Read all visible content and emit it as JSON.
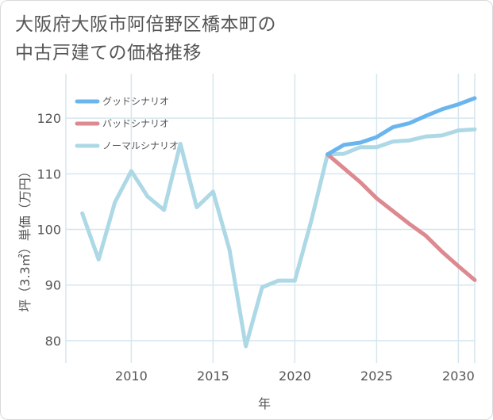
{
  "title": {
    "line1": "大阪府大阪市阿倍野区橋本町の",
    "line2": "中古戸建ての価格推移"
  },
  "chart_data": {
    "type": "line",
    "title": "大阪府大阪市阿倍野区橋本町の中古戸建ての価格推移",
    "xlabel": "年",
    "ylabel": "坪（3.3㎡）単価（万円）",
    "xlim": [
      2006,
      2031
    ],
    "ylim": [
      76,
      128
    ],
    "x_ticks": [
      2010,
      2015,
      2020,
      2025,
      2030
    ],
    "y_ticks": [
      80,
      90,
      100,
      110,
      120
    ],
    "grid": true,
    "legend_position": "top-left",
    "series": [
      {
        "name": "グッドシナリオ",
        "color": "#6ab5ee",
        "x": [
          2022,
          2023,
          2024,
          2025,
          2026,
          2027,
          2028,
          2029,
          2030,
          2031
        ],
        "values": [
          113.5,
          115.2,
          115.6,
          116.6,
          118.4,
          119.1,
          120.4,
          121.6,
          122.5,
          123.6
        ]
      },
      {
        "name": "バッドシナリオ",
        "color": "#dc8a8f",
        "x": [
          2022,
          2023,
          2024,
          2025,
          2026,
          2027,
          2028,
          2029,
          2030,
          2031
        ],
        "values": [
          113.5,
          111.0,
          108.5,
          105.6,
          103.3,
          101.0,
          98.9,
          96.0,
          93.4,
          90.9
        ]
      },
      {
        "name": "ノーマルシナリオ",
        "color": "#add8e6",
        "x": [
          2007,
          2008,
          2009,
          2010,
          2011,
          2012,
          2013,
          2014,
          2015,
          2016,
          2017,
          2018,
          2019,
          2020,
          2021,
          2022,
          2023,
          2024,
          2025,
          2026,
          2027,
          2028,
          2029,
          2030,
          2031
        ],
        "values": [
          102.9,
          94.6,
          104.9,
          110.5,
          105.9,
          103.5,
          115.4,
          104.0,
          106.8,
          96.4,
          79.0,
          89.6,
          90.8,
          90.8,
          101.5,
          113.5,
          113.6,
          114.8,
          114.8,
          115.8,
          116.0,
          116.7,
          116.9,
          117.8,
          118.0
        ]
      }
    ]
  }
}
